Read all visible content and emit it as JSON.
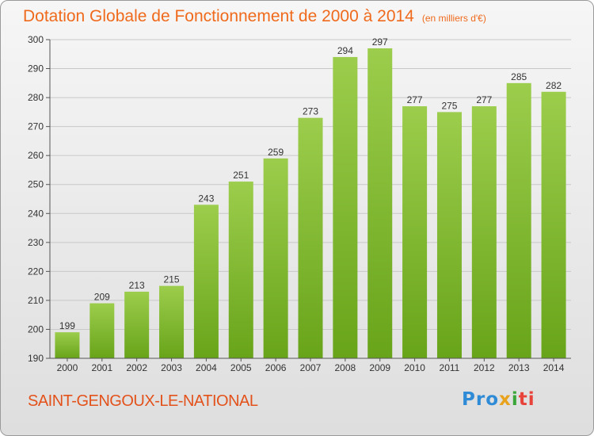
{
  "header": {
    "title": "Dotation Globale de Fonctionnement de 2000 à 2014",
    "unit": "(en milliers d'€)"
  },
  "footer": {
    "commune": "SAINT-GENGOUX-LE-NATIONAL",
    "logo": {
      "p1": "Pro",
      "p2": "x",
      "p3": "i",
      "p4": "ti"
    }
  },
  "colors": {
    "accent": "#ef6a1c",
    "bar_top": "#9ccd4c",
    "bar_bottom": "#68a41a",
    "grid": "#c8c8c8"
  },
  "chart_data": {
    "type": "bar",
    "title": "Dotation Globale de Fonctionnement de 2000 à 2014",
    "xlabel": "",
    "ylabel": "",
    "categories": [
      "2000",
      "2001",
      "2002",
      "2003",
      "2004",
      "2005",
      "2006",
      "2007",
      "2008",
      "2009",
      "2010",
      "2011",
      "2012",
      "2013",
      "2014"
    ],
    "values": [
      199,
      209,
      213,
      215,
      243,
      251,
      259,
      273,
      294,
      297,
      277,
      275,
      277,
      285,
      282
    ],
    "ylim": [
      190,
      300
    ],
    "yticks": [
      190,
      200,
      210,
      220,
      230,
      240,
      250,
      260,
      270,
      280,
      290,
      300
    ],
    "grid": true,
    "data_labels": true
  }
}
